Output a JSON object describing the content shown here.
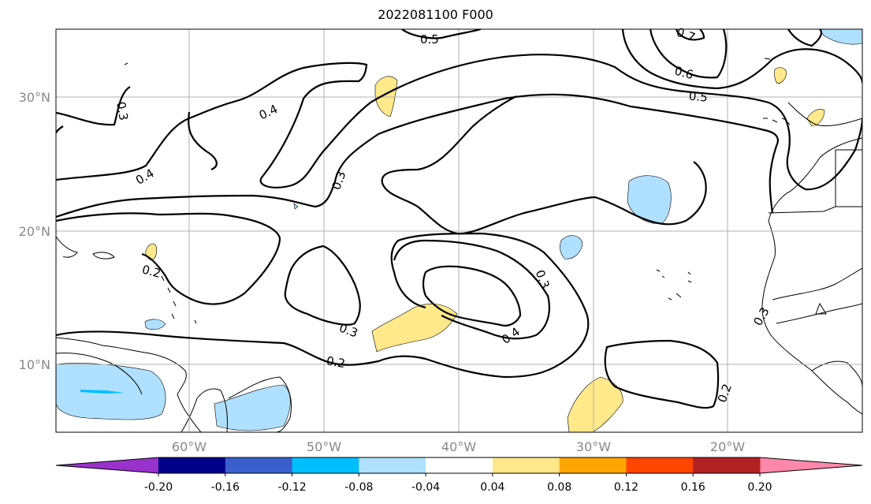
{
  "title": "2022081100 F000",
  "map": {
    "lat_labels": [
      "30°N",
      "20°N",
      "10°N"
    ],
    "lon_labels": [
      "60°W",
      "50°W",
      "40°W",
      "30°W",
      "20°W"
    ],
    "contour_labels": [
      "0.2",
      "0.2",
      "0.2",
      "0.3",
      "0.3",
      "0.3",
      "0.3",
      "0.3",
      "0.4",
      "0.4",
      "0.4",
      "0.5",
      "0.5",
      "0.6",
      "0.7"
    ]
  },
  "colorbar": {
    "ticks": [
      "-0.20",
      "-0.16",
      "-0.12",
      "-0.08",
      "-0.04",
      "0.04",
      "0.08",
      "0.12",
      "0.16",
      "0.20"
    ],
    "colors": [
      "#9932cc",
      "#00008b",
      "#3a5fcd",
      "#00bfff",
      "#b0e0ff",
      "#ffffff",
      "#ffe98a",
      "#ffa500",
      "#ff4500",
      "#b22222",
      "#ff88aa"
    ]
  }
}
